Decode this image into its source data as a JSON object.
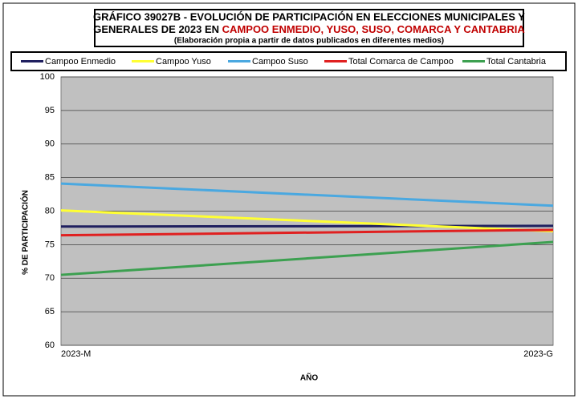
{
  "chart_data": {
    "type": "line",
    "title_lines": [
      "GRÁFICO 39027B - EVOLUCIÓN DE PARTICIPACIÓN EN ELECCIONES MUNICIPALES Y",
      "GENERALES DE 2023 EN"
    ],
    "title_highlight": "CAMPOO ENMEDIO, YUSO, SUSO, COMARCA Y CANTABRIA",
    "subtitle": "(Elaboración propia a partir de datos publicados en diferentes medios)",
    "x_label": "AÑO",
    "y_label": "% DE PARTICIPACIÓN",
    "categories": [
      "2023-M",
      "2023-G"
    ],
    "series": [
      {
        "name": "Campoo Enmedio",
        "color": "#1f1f5f",
        "values": [
          77.7,
          77.8
        ]
      },
      {
        "name": "Campoo Yuso",
        "color": "#ffff33",
        "values": [
          80.1,
          77.0
        ]
      },
      {
        "name": "Campoo Suso",
        "color": "#4aa8e0",
        "values": [
          84.1,
          80.8
        ]
      },
      {
        "name": "Total Comarca de Campoo",
        "color": "#e02020",
        "values": [
          76.4,
          77.2
        ]
      },
      {
        "name": "Total Cantabria",
        "color": "#3ca050",
        "values": [
          70.5,
          75.4
        ]
      }
    ],
    "ylim": [
      60,
      100
    ],
    "yticks": [
      60,
      65,
      70,
      75,
      80,
      85,
      90,
      95,
      100
    ],
    "grid": true
  }
}
